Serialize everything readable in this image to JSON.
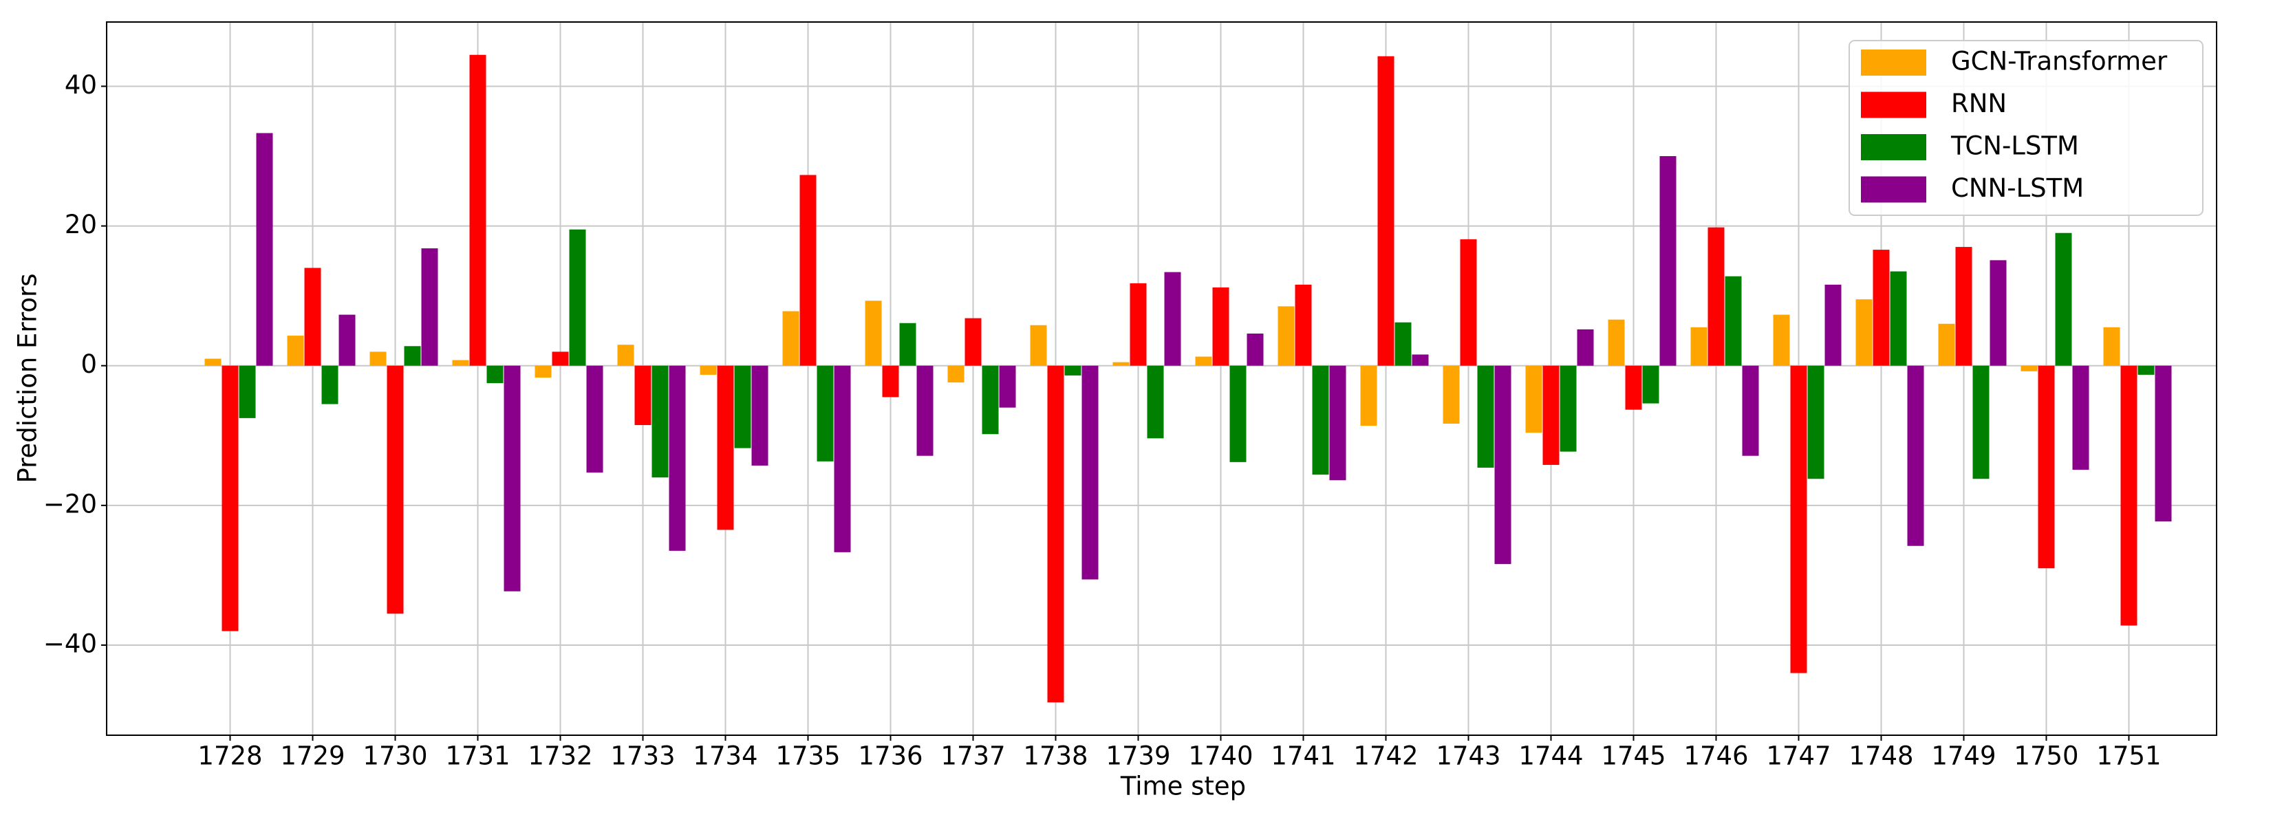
{
  "chart_data": {
    "type": "bar",
    "xlabel": "Time step",
    "ylabel": "Prediction Errors",
    "categories": [
      "1728",
      "1729",
      "1730",
      "1731",
      "1732",
      "1733",
      "1734",
      "1735",
      "1736",
      "1737",
      "1738",
      "1739",
      "1740",
      "1741",
      "1742",
      "1743",
      "1744",
      "1745",
      "1746",
      "1747",
      "1748",
      "1749",
      "1750",
      "1751"
    ],
    "series": [
      {
        "name": "GCN-Transformer",
        "color": "#ffa500",
        "values": [
          1,
          4.3,
          2,
          0.8,
          -1.7,
          3,
          -1.3,
          7.8,
          9.3,
          -2.4,
          5.8,
          0.5,
          1.3,
          8.5,
          -8.6,
          -8.3,
          -9.6,
          6.6,
          5.5,
          7.3,
          9.5,
          6,
          -0.8,
          5.5
        ]
      },
      {
        "name": "RNN",
        "color": "#ff0000",
        "values": [
          -38,
          14,
          -35.5,
          44.5,
          2,
          -8.5,
          -23.5,
          27.3,
          -4.5,
          6.8,
          -48.2,
          11.8,
          11.2,
          11.6,
          44.3,
          18.1,
          -14.2,
          -6.3,
          19.8,
          -44,
          16.6,
          17,
          -29,
          -37.2
        ]
      },
      {
        "name": "TCN-LSTM",
        "color": "#008000",
        "values": [
          -7.5,
          -5.5,
          2.8,
          -2.5,
          19.5,
          -16,
          -11.8,
          -13.7,
          6.1,
          -9.8,
          -1.4,
          -10.4,
          -13.8,
          -15.6,
          6.2,
          -14.6,
          -12.3,
          -5.4,
          12.8,
          -16.2,
          13.5,
          -16.2,
          19,
          -1.3
        ]
      },
      {
        "name": "CNN-LSTM",
        "color": "#8b008b",
        "values": [
          33.3,
          7.3,
          16.8,
          -32.3,
          -15.3,
          -26.5,
          -14.3,
          -26.7,
          -12.9,
          -6,
          -30.6,
          13.4,
          4.6,
          -16.4,
          1.6,
          -28.4,
          5.2,
          30,
          -12.9,
          11.6,
          -25.8,
          15.1,
          -14.9,
          -22.3
        ]
      }
    ],
    "ylim": [
      -52.9,
      49.2
    ],
    "yticks": [
      {
        "value": -40,
        "label": "−40"
      },
      {
        "value": -20,
        "label": "−20"
      },
      0,
      20,
      40
    ],
    "grid": true,
    "legend": "upper right"
  }
}
